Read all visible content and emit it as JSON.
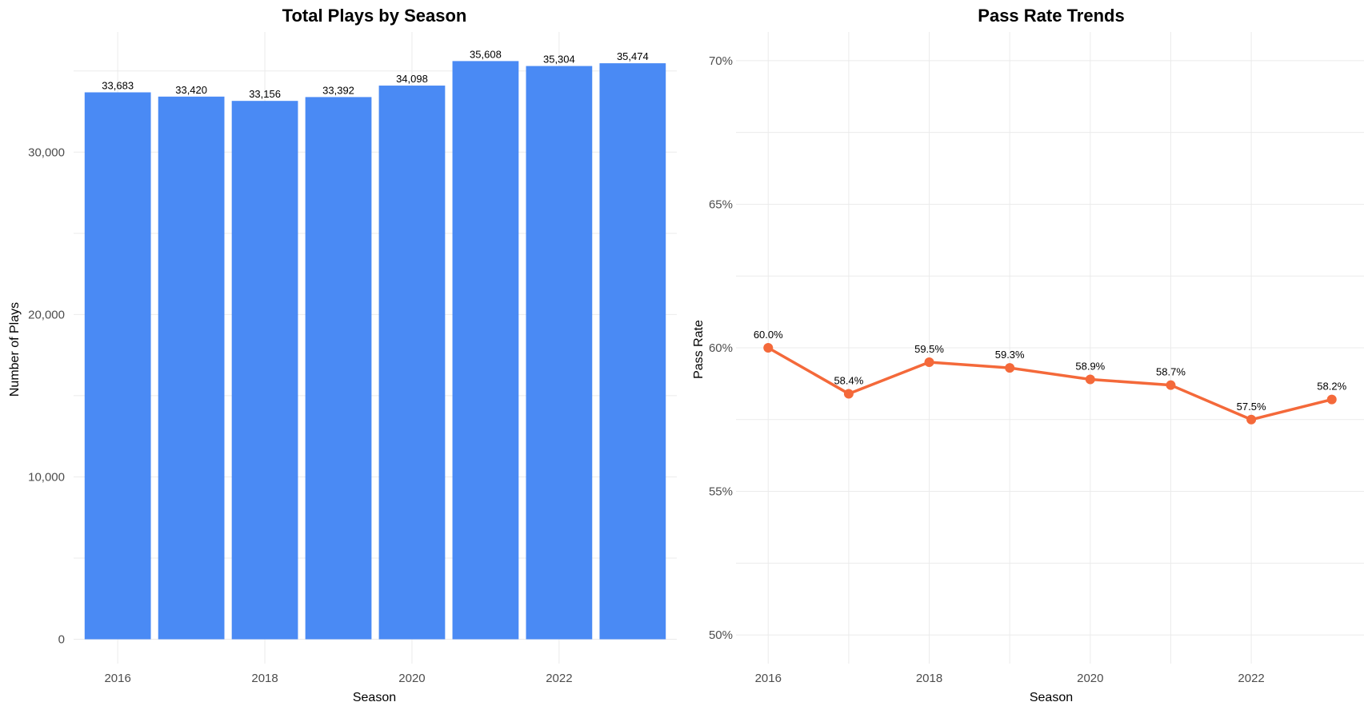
{
  "chart_data": [
    {
      "type": "bar",
      "title": "Total Plays by Season",
      "xlabel": "Season",
      "ylabel": "Number of Plays",
      "categories": [
        2016,
        2017,
        2018,
        2019,
        2020,
        2021,
        2022,
        2023
      ],
      "values": [
        33683,
        33420,
        33156,
        33392,
        34098,
        35608,
        35304,
        35474
      ],
      "value_labels": [
        "33,683",
        "33,420",
        "33,156",
        "33,392",
        "34,098",
        "35,608",
        "35,304",
        "35,474"
      ],
      "x_ticks": [
        2016,
        2018,
        2020,
        2022
      ],
      "x_tick_labels": [
        "2016",
        "2018",
        "2020",
        "2022"
      ],
      "y_ticks": [
        0,
        10000,
        20000,
        30000
      ],
      "y_tick_labels": [
        "0",
        "10,000",
        "20,000",
        "30,000"
      ],
      "ylim": [
        -1500,
        37400
      ],
      "grid": true,
      "color": "#4a8af4"
    },
    {
      "type": "line",
      "title": "Pass Rate Trends",
      "xlabel": "Season",
      "ylabel": "Pass Rate",
      "x": [
        2016,
        2017,
        2018,
        2019,
        2020,
        2021,
        2022,
        2023
      ],
      "values": [
        60.0,
        58.4,
        59.5,
        59.3,
        58.9,
        58.7,
        57.5,
        58.2
      ],
      "value_labels": [
        "60.0%",
        "58.4%",
        "59.5%",
        "59.3%",
        "58.9%",
        "58.7%",
        "57.5%",
        "58.2%"
      ],
      "x_ticks": [
        2016,
        2018,
        2020,
        2022
      ],
      "x_tick_labels": [
        "2016",
        "2018",
        "2020",
        "2022"
      ],
      "y_ticks": [
        50,
        55,
        60,
        65,
        70
      ],
      "y_tick_labels": [
        "50%",
        "55%",
        "60%",
        "65%",
        "70%"
      ],
      "ylim": [
        49,
        71
      ],
      "xlim": [
        2015.6,
        2023.4
      ],
      "grid": true,
      "color": "#f4693a"
    }
  ]
}
